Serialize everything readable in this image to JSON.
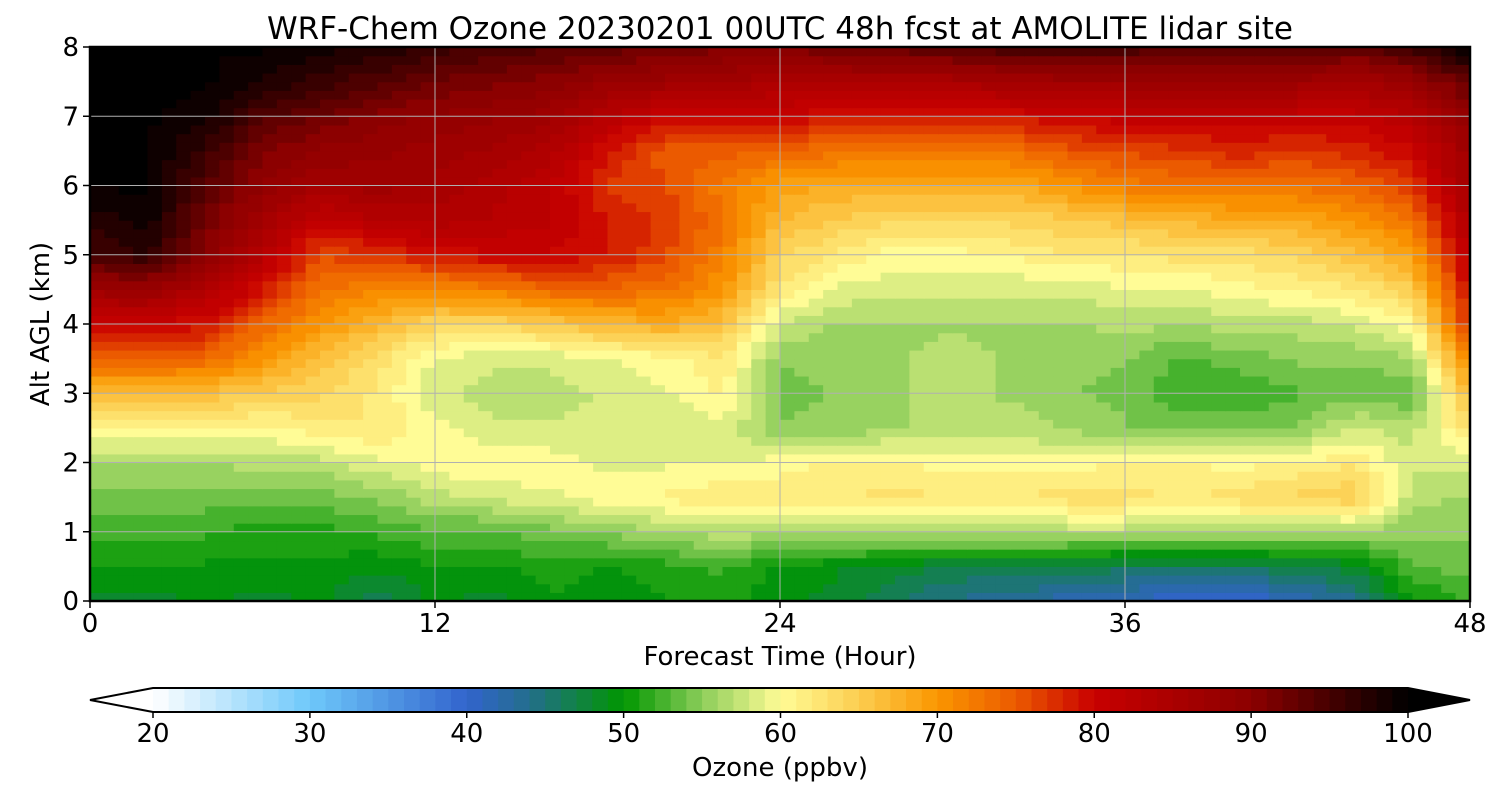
{
  "chart_data": {
    "type": "heatmap",
    "title": "WRF-Chem Ozone  20230201 00UTC 48h fcst at AMOLITE lidar site",
    "xlabel": "Forecast Time (Hour)",
    "ylabel": "Alt AGL (km)",
    "xlim": [
      0,
      48
    ],
    "ylim": [
      0,
      8
    ],
    "x_ticks": [
      "0",
      "12",
      "24",
      "36",
      "48"
    ],
    "y_ticks": [
      "0",
      "1",
      "2",
      "3",
      "4",
      "5",
      "6",
      "7",
      "8"
    ],
    "grid": true,
    "z_x_hours": [
      0,
      2,
      4,
      6,
      8,
      10,
      12,
      14,
      16,
      18,
      20,
      22,
      24,
      26,
      28,
      30,
      32,
      34,
      36,
      38,
      40,
      42,
      44,
      46,
      48
    ],
    "z_y_km": [
      0,
      0.5,
      1,
      1.5,
      2,
      2.5,
      3,
      3.5,
      4,
      4.5,
      5,
      5.5,
      6,
      6.5,
      7,
      7.5,
      8
    ],
    "z_values_ppbv": [
      [
        48,
        48,
        49,
        48,
        49,
        46,
        49,
        48,
        50,
        49,
        50,
        51,
        49,
        48,
        46,
        44,
        43,
        42,
        41,
        40,
        40,
        41,
        44,
        50,
        52
      ],
      [
        50,
        50,
        50,
        50,
        50,
        49,
        50,
        50,
        51,
        50,
        51,
        52,
        50,
        49,
        48,
        47,
        47,
        47,
        46,
        46,
        46,
        47,
        48,
        53,
        54
      ],
      [
        52,
        52,
        52,
        51,
        51,
        52,
        53,
        53,
        54,
        55,
        56,
        57,
        57,
        57,
        57,
        57,
        57,
        57,
        57,
        57,
        57,
        56,
        56,
        55,
        55
      ],
      [
        54,
        54,
        54,
        54,
        54,
        55,
        57,
        58,
        59,
        60,
        61,
        62,
        62,
        62,
        63,
        62,
        62,
        63,
        63,
        62,
        63,
        64,
        65,
        57,
        56
      ],
      [
        56,
        56,
        56,
        57,
        57,
        59,
        60,
        61,
        60,
        59,
        59,
        59,
        60,
        61,
        61,
        60,
        60,
        60,
        61,
        61,
        60,
        61,
        62,
        58,
        58
      ],
      [
        61,
        61,
        61,
        60,
        62,
        62,
        60,
        58,
        58,
        58,
        58,
        59,
        55,
        55,
        56,
        57,
        57,
        56,
        55,
        54,
        54,
        55,
        58,
        57,
        63
      ],
      [
        66,
        66,
        66,
        65,
        64,
        62,
        58,
        57,
        57,
        58,
        59,
        61,
        54,
        55,
        56,
        57,
        56,
        55,
        54,
        52,
        52,
        53,
        54,
        53,
        67
      ],
      [
        75,
        75,
        74,
        70,
        66,
        63,
        59,
        58,
        58,
        59,
        60,
        62,
        55,
        55,
        56,
        57,
        56,
        55,
        55,
        53,
        54,
        55,
        55,
        56,
        72
      ],
      [
        80,
        80,
        79,
        74,
        70,
        67,
        64,
        64,
        65,
        67,
        68,
        66,
        58,
        56,
        56,
        56,
        56,
        56,
        57,
        56,
        57,
        57,
        58,
        60,
        78
      ],
      [
        87,
        88,
        84,
        79,
        73,
        71,
        71,
        72,
        74,
        74,
        73,
        70,
        62,
        59,
        58,
        58,
        58,
        58,
        59,
        59,
        60,
        61,
        62,
        65,
        80
      ],
      [
        95,
        97,
        90,
        83,
        76,
        77,
        79,
        80,
        80,
        79,
        76,
        72,
        64,
        62,
        60,
        60,
        61,
        62,
        62,
        63,
        63,
        64,
        66,
        69,
        82
      ],
      [
        97,
        99,
        92,
        86,
        81,
        83,
        84,
        83,
        82,
        79,
        77,
        73,
        67,
        65,
        64,
        64,
        64,
        65,
        66,
        67,
        68,
        68,
        70,
        73,
        84
      ],
      [
        100,
        100,
        94,
        89,
        86,
        87,
        86,
        84,
        82,
        77,
        76,
        72,
        69,
        68,
        68,
        68,
        68,
        70,
        72,
        73,
        73,
        73,
        74,
        77,
        86
      ],
      [
        100,
        100,
        96,
        91,
        89,
        88,
        87,
        86,
        84,
        79,
        75,
        75,
        74,
        73,
        73,
        73,
        73,
        75,
        76,
        77,
        78,
        77,
        78,
        80,
        87
      ],
      [
        100,
        100,
        99,
        94,
        92,
        90,
        89,
        88,
        87,
        83,
        80,
        80,
        80,
        79,
        79,
        78,
        79,
        80,
        81,
        81,
        81,
        81,
        81,
        83,
        89
      ],
      [
        100,
        100,
        100,
        98,
        96,
        94,
        92,
        91,
        90,
        88,
        87,
        86,
        85,
        85,
        85,
        85,
        86,
        87,
        87,
        87,
        87,
        87,
        86,
        88,
        93
      ],
      [
        100,
        100,
        100,
        100,
        99,
        98,
        96,
        95,
        94,
        93,
        92,
        91,
        91,
        92,
        93,
        94,
        95,
        95,
        95,
        94,
        94,
        94,
        93,
        96,
        100
      ]
    ],
    "colorbar": {
      "label": "Ozone  (ppbv)",
      "min": 20,
      "max": 100,
      "extend": "both",
      "ticks": [
        "20",
        "30",
        "40",
        "50",
        "60",
        "70",
        "80",
        "90",
        "100"
      ]
    }
  }
}
